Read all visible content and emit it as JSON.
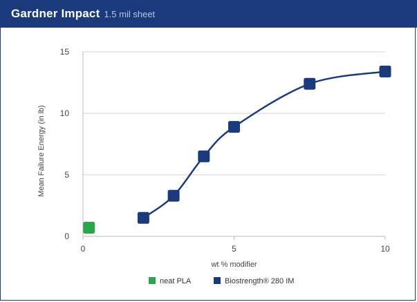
{
  "header": {
    "title_main": "Gardner Impact",
    "title_sub": "1.5 mil sheet"
  },
  "chart_data": {
    "type": "line",
    "xlabel": "wt % modifier",
    "ylabel": "Mean Failure Energy (in lb)",
    "xlim": [
      0,
      10
    ],
    "ylim": [
      0,
      15
    ],
    "x_ticks": [
      "0",
      "5",
      "10"
    ],
    "y_ticks": [
      "0",
      "5",
      "10",
      "15"
    ],
    "grid": "horizontal",
    "legend_position": "bottom",
    "series": [
      {
        "name": "neat PLA",
        "color": "#2ca64a",
        "marker": "square",
        "x": [
          0.2
        ],
        "y": [
          0.7
        ]
      },
      {
        "name": "Biostrength® 280 IM",
        "color": "#1a3a7c",
        "marker": "square",
        "line": "smooth",
        "x": [
          2,
          3,
          4,
          5,
          7.5,
          10
        ],
        "y": [
          1.5,
          3.3,
          6.5,
          8.9,
          12.4,
          13.4
        ]
      }
    ]
  }
}
